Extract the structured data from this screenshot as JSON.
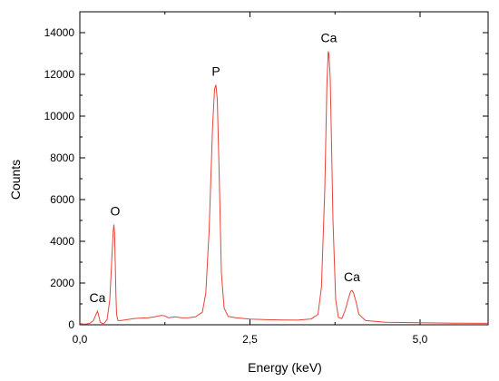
{
  "chart_data": {
    "type": "line",
    "xlabel": "Energy (keV)",
    "ylabel": "Counts",
    "xlim": [
      0,
      6
    ],
    "ylim": [
      0,
      15000
    ],
    "x_ticks": [
      {
        "value": 0,
        "label": "0,0"
      },
      {
        "value": 2.5,
        "label": "2,5"
      },
      {
        "value": 5,
        "label": "5,0"
      }
    ],
    "y_ticks": [
      {
        "value": 0,
        "label": "0"
      },
      {
        "value": 2000,
        "label": "2000"
      },
      {
        "value": 4000,
        "label": "4000"
      },
      {
        "value": 6000,
        "label": "6000"
      },
      {
        "value": 8000,
        "label": "8000"
      },
      {
        "value": 10000,
        "label": "10000"
      },
      {
        "value": 12000,
        "label": "12000"
      },
      {
        "value": 14000,
        "label": "14000"
      }
    ],
    "grid": false,
    "line_color": "#e8443a",
    "series": [
      {
        "x": [
          0.0,
          0.05,
          0.1,
          0.15,
          0.2,
          0.23,
          0.26,
          0.28,
          0.3,
          0.33,
          0.36,
          0.4,
          0.44,
          0.47,
          0.49,
          0.5,
          0.51,
          0.52,
          0.53,
          0.54,
          0.56,
          0.6,
          0.7,
          0.8,
          0.9,
          1.0,
          1.1,
          1.2,
          1.25,
          1.3,
          1.35,
          1.4,
          1.5,
          1.6,
          1.7,
          1.8,
          1.85,
          1.9,
          1.95,
          1.98,
          2.0,
          2.02,
          2.05,
          2.08,
          2.12,
          2.18,
          2.3,
          2.5,
          2.8,
          3.0,
          3.2,
          3.4,
          3.5,
          3.55,
          3.6,
          3.63,
          3.65,
          3.66,
          3.68,
          3.7,
          3.72,
          3.76,
          3.8,
          3.85,
          3.9,
          3.95,
          3.98,
          4.0,
          4.02,
          4.06,
          4.1,
          4.2,
          4.5,
          5.0,
          5.5,
          6.0
        ],
        "y": [
          80,
          30,
          40,
          80,
          200,
          450,
          650,
          400,
          120,
          60,
          80,
          250,
          1200,
          3200,
          4500,
          4800,
          4400,
          3000,
          1400,
          500,
          200,
          200,
          250,
          300,
          320,
          330,
          380,
          450,
          420,
          340,
          360,
          380,
          330,
          340,
          380,
          600,
          1500,
          4500,
          9500,
          11300,
          11500,
          10800,
          7000,
          2500,
          800,
          400,
          330,
          270,
          240,
          230,
          220,
          280,
          500,
          1800,
          6500,
          11500,
          13100,
          13000,
          11800,
          8500,
          5000,
          1200,
          350,
          300,
          700,
          1300,
          1600,
          1650,
          1550,
          1100,
          500,
          200,
          120,
          100,
          80,
          70
        ]
      }
    ],
    "annotations": [
      {
        "text": "Ca",
        "x": 0.26,
        "y": 650
      },
      {
        "text": "O",
        "x": 0.52,
        "y": 4800
      },
      {
        "text": "P",
        "x": 2.0,
        "y": 11500
      },
      {
        "text": "Ca",
        "x": 3.66,
        "y": 13100
      },
      {
        "text": "Ca",
        "x": 4.0,
        "y": 1650
      }
    ]
  }
}
